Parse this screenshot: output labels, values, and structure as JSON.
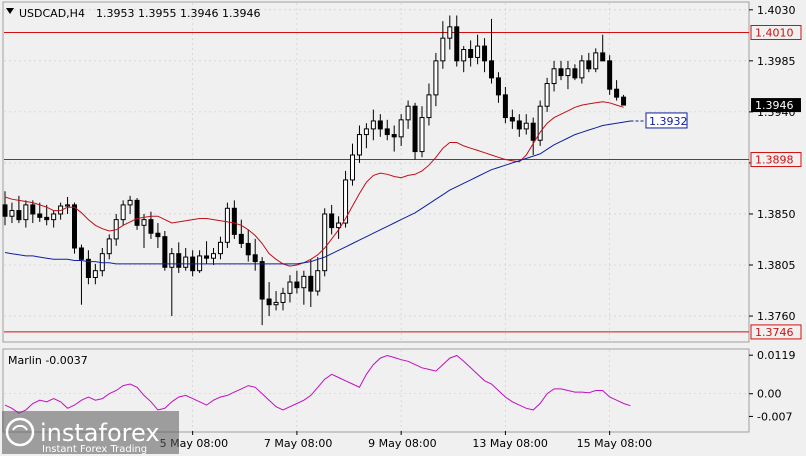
{
  "header": {
    "symbol": "USDCAD,H4",
    "ohlc": "1.3953 1.3955 1.3946 1.3946"
  },
  "colors": {
    "background": "#f0f0f0",
    "grid": "#c8c8c8",
    "candle": "#000000",
    "red_ma": "#c0101a",
    "blue_ma": "#1020a0",
    "level_line": "#d01010",
    "oscillator": "#c010c0",
    "current_price_bg": "#000000"
  },
  "chart_data": [
    {
      "type": "candlestick",
      "title": "USDCAD,H4",
      "ohlc_text": "1.3953 1.3955 1.3946 1.3946",
      "ylim": [
        1.3738,
        1.4036
      ],
      "y_ticks": [
        "1.4030",
        "1.3985",
        "1.3940",
        "1.3895",
        "1.3850",
        "1.3805",
        "1.3760"
      ],
      "x_tick_labels": [
        "5 May 08:00",
        "7 May 08:00",
        "9 May 08:00",
        "13 May 08:00",
        "15 May 08:00"
      ],
      "x_tick_bar_index": [
        27,
        42,
        57,
        72,
        87
      ],
      "levels": [
        {
          "label": "1.4010",
          "value": 1.401
        },
        {
          "label": "1.3898",
          "value": 1.3898
        },
        {
          "label": "1.3746",
          "value": 1.3746
        }
      ],
      "current_price": {
        "label": "1.3946",
        "value": 1.3946
      },
      "blue_ma_label": {
        "label": "1.3932",
        "value": 1.3932
      },
      "candles": [
        [
          1.3858,
          1.387,
          1.384,
          1.3848
        ],
        [
          1.3848,
          1.386,
          1.3842,
          1.3853
        ],
        [
          1.3853,
          1.3866,
          1.3842,
          1.3845
        ],
        [
          1.3845,
          1.3862,
          1.3838,
          1.3858
        ],
        [
          1.3858,
          1.3862,
          1.3842,
          1.385
        ],
        [
          1.385,
          1.386,
          1.3843,
          1.3847
        ],
        [
          1.3847,
          1.3858,
          1.384,
          1.3845
        ],
        [
          1.3845,
          1.3853,
          1.3838,
          1.385
        ],
        [
          1.385,
          1.386,
          1.3845,
          1.3857
        ],
        [
          1.3857,
          1.3865,
          1.385,
          1.3858
        ],
        [
          1.3858,
          1.386,
          1.3815,
          1.382
        ],
        [
          1.382,
          1.3823,
          1.377,
          1.381
        ],
        [
          1.381,
          1.3818,
          1.3788,
          1.3794
        ],
        [
          1.3794,
          1.3806,
          1.3788,
          1.38
        ],
        [
          1.38,
          1.382,
          1.3795,
          1.3815
        ],
        [
          1.3815,
          1.3832,
          1.381,
          1.3828
        ],
        [
          1.3828,
          1.385,
          1.3822,
          1.3845
        ],
        [
          1.3845,
          1.3862,
          1.384,
          1.3858
        ],
        [
          1.3858,
          1.3866,
          1.385,
          1.3862
        ],
        [
          1.3862,
          1.3864,
          1.3836,
          1.384
        ],
        [
          1.384,
          1.385,
          1.382,
          1.3845
        ],
        [
          1.3845,
          1.3852,
          1.3828,
          1.3833
        ],
        [
          1.3833,
          1.3842,
          1.382,
          1.383
        ],
        [
          1.383,
          1.3835,
          1.38,
          1.3803
        ],
        [
          1.3803,
          1.382,
          1.376,
          1.3815
        ],
        [
          1.3815,
          1.3825,
          1.3798,
          1.3803
        ],
        [
          1.3803,
          1.382,
          1.38,
          1.3812
        ],
        [
          1.3812,
          1.3818,
          1.3795,
          1.38
        ],
        [
          1.38,
          1.3818,
          1.3798,
          1.3813
        ],
        [
          1.3813,
          1.3826,
          1.3806,
          1.3811
        ],
        [
          1.3811,
          1.382,
          1.3805,
          1.3815
        ],
        [
          1.3815,
          1.383,
          1.381,
          1.3825
        ],
        [
          1.3825,
          1.386,
          1.382,
          1.3855
        ],
        [
          1.3855,
          1.3862,
          1.3828,
          1.3832
        ],
        [
          1.3832,
          1.3845,
          1.382,
          1.3824
        ],
        [
          1.3824,
          1.3836,
          1.3808,
          1.3814
        ],
        [
          1.3814,
          1.3828,
          1.38,
          1.3808
        ],
        [
          1.3808,
          1.3812,
          1.3752,
          1.3775
        ],
        [
          1.3775,
          1.379,
          1.376,
          1.377
        ],
        [
          1.377,
          1.3782,
          1.3765,
          1.3772
        ],
        [
          1.3772,
          1.3785,
          1.3765,
          1.378
        ],
        [
          1.378,
          1.3796,
          1.3772,
          1.379
        ],
        [
          1.379,
          1.38,
          1.378,
          1.3785
        ],
        [
          1.3785,
          1.38,
          1.377,
          1.3795
        ],
        [
          1.3795,
          1.381,
          1.3768,
          1.3782
        ],
        [
          1.3782,
          1.3812,
          1.3778,
          1.38
        ],
        [
          1.38,
          1.3855,
          1.3795,
          1.385
        ],
        [
          1.385,
          1.3858,
          1.3832,
          1.3838
        ],
        [
          1.3838,
          1.3848,
          1.3828,
          1.3842
        ],
        [
          1.3842,
          1.3888,
          1.3838,
          1.388
        ],
        [
          1.388,
          1.3912,
          1.3875,
          1.3902
        ],
        [
          1.3902,
          1.3928,
          1.3895,
          1.392
        ],
        [
          1.392,
          1.393,
          1.3908,
          1.3925
        ],
        [
          1.3925,
          1.3942,
          1.3915,
          1.3932
        ],
        [
          1.3932,
          1.3938,
          1.3918,
          1.3925
        ],
        [
          1.3925,
          1.3933,
          1.3915,
          1.392
        ],
        [
          1.392,
          1.3928,
          1.3905,
          1.3918
        ],
        [
          1.3918,
          1.3938,
          1.391,
          1.3933
        ],
        [
          1.3933,
          1.395,
          1.3925,
          1.3945
        ],
        [
          1.3945,
          1.3948,
          1.3898,
          1.3905
        ],
        [
          1.3905,
          1.3945,
          1.39,
          1.3935
        ],
        [
          1.3935,
          1.3965,
          1.3928,
          1.3955
        ],
        [
          1.3955,
          1.3992,
          1.3945,
          1.3985
        ],
        [
          1.3985,
          1.402,
          1.3978,
          1.4005
        ],
        [
          1.4005,
          1.4025,
          1.3995,
          1.4015
        ],
        [
          1.4015,
          1.4025,
          1.398,
          1.3985
        ],
        [
          1.3985,
          1.3998,
          1.3975,
          1.3995
        ],
        [
          1.3995,
          1.4003,
          1.398,
          1.3988
        ],
        [
          1.3988,
          1.4008,
          1.3982,
          1.3998
        ],
        [
          1.3998,
          1.4005,
          1.3975,
          1.3985
        ],
        [
          1.3985,
          1.4022,
          1.3965,
          1.397
        ],
        [
          1.397,
          1.3975,
          1.3948,
          1.3955
        ],
        [
          1.3955,
          1.3962,
          1.393,
          1.3935
        ],
        [
          1.3935,
          1.3942,
          1.3925,
          1.3932
        ],
        [
          1.3932,
          1.3938,
          1.3918,
          1.3925
        ],
        [
          1.3925,
          1.3938,
          1.392,
          1.393
        ],
        [
          1.393,
          1.3935,
          1.3902,
          1.3915
        ],
        [
          1.3915,
          1.395,
          1.391,
          1.3945
        ],
        [
          1.3945,
          1.397,
          1.394,
          1.3965
        ],
        [
          1.3965,
          1.3985,
          1.3958,
          1.3978
        ],
        [
          1.3978,
          1.3985,
          1.3968,
          1.3972
        ],
        [
          1.3972,
          1.3985,
          1.396,
          1.3978
        ],
        [
          1.3978,
          1.3982,
          1.3968,
          1.397
        ],
        [
          1.397,
          1.399,
          1.3965,
          1.3985
        ],
        [
          1.3985,
          1.3992,
          1.3975,
          1.3978
        ],
        [
          1.3978,
          1.3996,
          1.3975,
          1.3992
        ],
        [
          1.3992,
          1.4008,
          1.3985,
          1.3985
        ],
        [
          1.3985,
          1.399,
          1.3955,
          1.396
        ],
        [
          1.396,
          1.3968,
          1.395,
          1.3953
        ],
        [
          1.3953,
          1.3955,
          1.3946,
          1.3946
        ]
      ],
      "series": [
        {
          "color": "#c0101a",
          "values": [
            1.3865,
            1.3863,
            1.3862,
            1.3861,
            1.386,
            1.3858,
            1.3856,
            1.3853,
            1.3853,
            1.3856,
            1.3856,
            1.3851,
            1.3845,
            1.384,
            1.3837,
            1.3835,
            1.3836,
            1.384,
            1.3843,
            1.3846,
            1.3847,
            1.3848,
            1.3848,
            1.3845,
            1.3842,
            1.3843,
            1.3844,
            1.3845,
            1.3846,
            1.3846,
            1.3845,
            1.3844,
            1.3843,
            1.3842,
            1.384,
            1.3836,
            1.3831,
            1.3824,
            1.3815,
            1.381,
            1.3806,
            1.3804,
            1.3805,
            1.3807,
            1.381,
            1.3814,
            1.382,
            1.3828,
            1.3836,
            1.3846,
            1.3857,
            1.3868,
            1.3878,
            1.3884,
            1.3886,
            1.3885,
            1.3883,
            1.3882,
            1.3884,
            1.3885,
            1.3888,
            1.3893,
            1.39,
            1.3908,
            1.3913,
            1.3913,
            1.391,
            1.3908,
            1.3906,
            1.3904,
            1.3902,
            1.39,
            1.3898,
            1.3897,
            1.3896,
            1.3902,
            1.3912,
            1.3922,
            1.393,
            1.3935,
            1.3938,
            1.3941,
            1.3944,
            1.3946,
            1.3947,
            1.3948,
            1.3949,
            1.3948,
            1.3946,
            1.3944
          ]
        },
        {
          "color": "#1020a0",
          "values": [
            1.3816,
            1.3815,
            1.3814,
            1.3813,
            1.3813,
            1.3812,
            1.3811,
            1.381,
            1.381,
            1.381,
            1.3809,
            1.3809,
            1.3808,
            1.3808,
            1.3807,
            1.3807,
            1.3806,
            1.3806,
            1.3806,
            1.3806,
            1.3806,
            1.3806,
            1.3806,
            1.3806,
            1.3806,
            1.3806,
            1.3806,
            1.3806,
            1.3806,
            1.3806,
            1.3806,
            1.3806,
            1.3806,
            1.3806,
            1.3806,
            1.3806,
            1.3806,
            1.3806,
            1.3806,
            1.3806,
            1.3806,
            1.3806,
            1.3806,
            1.3807,
            1.3808,
            1.381,
            1.3812,
            1.3815,
            1.3818,
            1.3821,
            1.3824,
            1.3827,
            1.383,
            1.3833,
            1.3836,
            1.3839,
            1.3842,
            1.3845,
            1.3848,
            1.3851,
            1.3855,
            1.3859,
            1.3863,
            1.3867,
            1.3871,
            1.3874,
            1.3877,
            1.388,
            1.3883,
            1.3886,
            1.3889,
            1.3891,
            1.3893,
            1.3895,
            1.3897,
            1.3899,
            1.3901,
            1.3903,
            1.3907,
            1.3911,
            1.3914,
            1.3917,
            1.392,
            1.3922,
            1.3924,
            1.3926,
            1.3928,
            1.3929,
            1.393,
            1.3931,
            1.3932
          ]
        }
      ]
    },
    {
      "type": "line",
      "title": "Marlin -0.0037",
      "ylim": [
        -0.0115,
        0.0135
      ],
      "y_ticks": [
        "0.0119",
        "0.00",
        "-0.007"
      ],
      "series": [
        {
          "name": "Marlin",
          "color": "#c010c0",
          "values": [
            -0.0035,
            -0.0045,
            -0.006,
            -0.005,
            -0.003,
            -0.002,
            -0.0025,
            -0.0015,
            -0.0025,
            -0.0045,
            -0.0035,
            -0.002,
            -0.001,
            -0.002,
            -0.0015,
            0.0,
            0.001,
            0.0025,
            0.003,
            0.002,
            -0.0005,
            -0.0025,
            -0.005,
            -0.0045,
            -0.0025,
            -0.001,
            -0.0005,
            -0.0015,
            -0.0025,
            -0.0035,
            -0.002,
            -0.001,
            -0.0005,
            0.0005,
            0.0015,
            0.0025,
            0.002,
            0.0,
            -0.002,
            -0.004,
            -0.005,
            -0.004,
            -0.003,
            -0.002,
            -0.0005,
            0.002,
            0.0045,
            0.006,
            0.005,
            0.004,
            0.003,
            0.002,
            0.006,
            0.009,
            0.011,
            0.0118,
            0.0112,
            0.0105,
            0.01,
            0.009,
            0.008,
            0.0075,
            0.007,
            0.009,
            0.011,
            0.0118,
            0.01,
            0.008,
            0.006,
            0.004,
            0.003,
            0.001,
            -0.001,
            -0.0025,
            -0.0035,
            -0.0045,
            -0.005,
            -0.003,
            0.0,
            0.0015,
            0.0015,
            0.001,
            0.0005,
            0.0005,
            0.0003,
            0.001,
            0.001,
            -0.001,
            -0.002,
            -0.003,
            -0.0037
          ]
        }
      ]
    }
  ],
  "watermark": {
    "brand": "instaforex",
    "tagline": "Instant Forex Trading"
  }
}
